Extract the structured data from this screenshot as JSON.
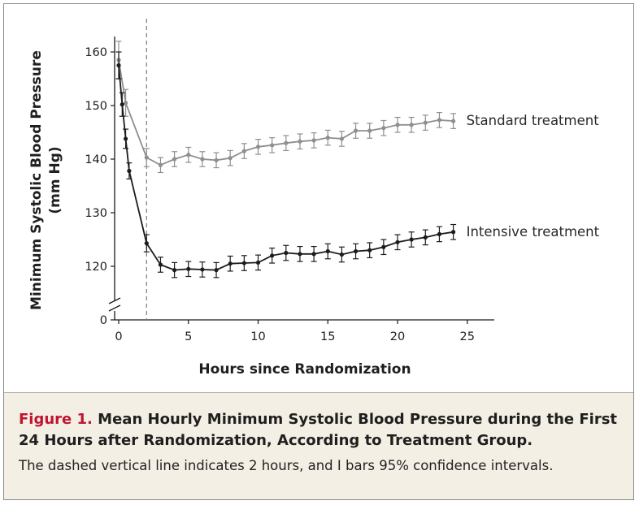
{
  "chart_data": {
    "type": "line",
    "xlabel": "Hours since Randomization",
    "ylabel": "Minimum Systolic Blood Pressure",
    "ylabel_unit": "(mm Hg)",
    "xlim": [
      0,
      27
    ],
    "ylim": [
      0,
      160
    ],
    "y_axis_break": true,
    "x_ticks": [
      0,
      5,
      10,
      15,
      20,
      25
    ],
    "x_tick_labels": [
      "0",
      "5",
      "10",
      "15",
      "20",
      "25"
    ],
    "y_ticks": [
      0,
      120,
      130,
      140,
      150,
      160
    ],
    "y_tick_labels": [
      "0",
      "120",
      "130",
      "140",
      "150",
      "160"
    ],
    "reference_line": {
      "x": 2,
      "style": "dashed"
    },
    "series": [
      {
        "name": "Standard treatment",
        "color": "#8f8f8f",
        "points": [
          {
            "x": 0,
            "y": 158.5,
            "lo": 155.0,
            "hi": 162.0
          },
          {
            "x": 0.5,
            "y": 150.5,
            "lo": 148.0,
            "hi": 153.0
          },
          {
            "x": 2,
            "y": 140.3,
            "lo": 138.6,
            "hi": 142.0
          },
          {
            "x": 3,
            "y": 138.9,
            "lo": 137.5,
            "hi": 140.3
          },
          {
            "x": 4,
            "y": 140.0,
            "lo": 138.6,
            "hi": 141.4
          },
          {
            "x": 5,
            "y": 140.8,
            "lo": 139.4,
            "hi": 142.2
          },
          {
            "x": 6,
            "y": 140.0,
            "lo": 138.6,
            "hi": 141.4
          },
          {
            "x": 7,
            "y": 139.8,
            "lo": 138.4,
            "hi": 141.2
          },
          {
            "x": 8,
            "y": 140.2,
            "lo": 138.8,
            "hi": 141.6
          },
          {
            "x": 9,
            "y": 141.5,
            "lo": 140.1,
            "hi": 142.9
          },
          {
            "x": 10,
            "y": 142.3,
            "lo": 140.9,
            "hi": 143.7
          },
          {
            "x": 11,
            "y": 142.6,
            "lo": 141.2,
            "hi": 144.0
          },
          {
            "x": 12,
            "y": 143.0,
            "lo": 141.6,
            "hi": 144.4
          },
          {
            "x": 13,
            "y": 143.3,
            "lo": 141.9,
            "hi": 144.7
          },
          {
            "x": 14,
            "y": 143.5,
            "lo": 142.1,
            "hi": 144.9
          },
          {
            "x": 15,
            "y": 144.0,
            "lo": 142.6,
            "hi": 145.4
          },
          {
            "x": 16,
            "y": 143.8,
            "lo": 142.4,
            "hi": 145.2
          },
          {
            "x": 17,
            "y": 145.3,
            "lo": 143.9,
            "hi": 146.7
          },
          {
            "x": 18,
            "y": 145.3,
            "lo": 143.9,
            "hi": 146.7
          },
          {
            "x": 19,
            "y": 145.8,
            "lo": 144.4,
            "hi": 147.2
          },
          {
            "x": 20,
            "y": 146.4,
            "lo": 145.0,
            "hi": 147.8
          },
          {
            "x": 21,
            "y": 146.4,
            "lo": 145.0,
            "hi": 147.8
          },
          {
            "x": 22,
            "y": 146.8,
            "lo": 145.4,
            "hi": 148.2
          },
          {
            "x": 23,
            "y": 147.3,
            "lo": 145.9,
            "hi": 148.7
          },
          {
            "x": 24,
            "y": 147.1,
            "lo": 145.7,
            "hi": 148.5
          }
        ]
      },
      {
        "name": "Intensive treatment",
        "color": "#1c1c1c",
        "points": [
          {
            "x": 0,
            "y": 157.5,
            "lo": 155.0,
            "hi": 160.0
          },
          {
            "x": 0.25,
            "y": 150.2,
            "lo": 148.0,
            "hi": 152.4
          },
          {
            "x": 0.5,
            "y": 143.8,
            "lo": 142.0,
            "hi": 145.6
          },
          {
            "x": 0.75,
            "y": 137.8,
            "lo": 136.3,
            "hi": 139.3
          },
          {
            "x": 2,
            "y": 124.3,
            "lo": 122.7,
            "hi": 125.9
          },
          {
            "x": 3,
            "y": 120.3,
            "lo": 118.9,
            "hi": 121.7
          },
          {
            "x": 4,
            "y": 119.3,
            "lo": 117.9,
            "hi": 120.7
          },
          {
            "x": 5,
            "y": 119.5,
            "lo": 118.1,
            "hi": 120.9
          },
          {
            "x": 6,
            "y": 119.4,
            "lo": 118.0,
            "hi": 120.8
          },
          {
            "x": 7,
            "y": 119.3,
            "lo": 117.9,
            "hi": 120.7
          },
          {
            "x": 8,
            "y": 120.5,
            "lo": 119.1,
            "hi": 121.9
          },
          {
            "x": 9,
            "y": 120.6,
            "lo": 119.2,
            "hi": 122.0
          },
          {
            "x": 10,
            "y": 120.7,
            "lo": 119.3,
            "hi": 122.1
          },
          {
            "x": 11,
            "y": 122.0,
            "lo": 120.6,
            "hi": 123.4
          },
          {
            "x": 12,
            "y": 122.5,
            "lo": 121.1,
            "hi": 123.9
          },
          {
            "x": 13,
            "y": 122.3,
            "lo": 120.9,
            "hi": 123.7
          },
          {
            "x": 14,
            "y": 122.3,
            "lo": 120.9,
            "hi": 123.7
          },
          {
            "x": 15,
            "y": 122.8,
            "lo": 121.4,
            "hi": 124.2
          },
          {
            "x": 16,
            "y": 122.2,
            "lo": 120.8,
            "hi": 123.6
          },
          {
            "x": 17,
            "y": 122.8,
            "lo": 121.4,
            "hi": 124.2
          },
          {
            "x": 18,
            "y": 123.0,
            "lo": 121.6,
            "hi": 124.4
          },
          {
            "x": 19,
            "y": 123.6,
            "lo": 122.2,
            "hi": 125.0
          },
          {
            "x": 20,
            "y": 124.5,
            "lo": 123.1,
            "hi": 125.9
          },
          {
            "x": 21,
            "y": 125.0,
            "lo": 123.6,
            "hi": 126.4
          },
          {
            "x": 22,
            "y": 125.4,
            "lo": 124.0,
            "hi": 126.8
          },
          {
            "x": 23,
            "y": 126.0,
            "lo": 124.6,
            "hi": 127.4
          },
          {
            "x": 24,
            "y": 126.4,
            "lo": 125.0,
            "hi": 127.8
          }
        ]
      }
    ]
  },
  "caption": {
    "figure_label": "Figure 1.",
    "title": "Mean Hourly Minimum Systolic Blood Pressure during the First 24 Hours after Randomization, According to Treatment Group.",
    "note": "The dashed vertical line indicates 2 hours, and I bars 95% confidence intervals."
  }
}
